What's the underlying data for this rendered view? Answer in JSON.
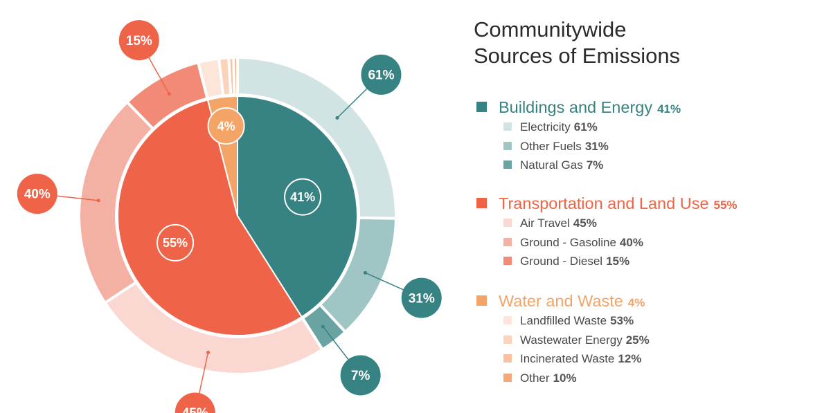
{
  "chart_data": {
    "type": "pie",
    "variant": "nested-donut",
    "title": "Communitywide\nSources of Emissions",
    "title_lines": [
      "Communitywide",
      "Sources of Emissions"
    ],
    "categories": [
      {
        "name": "Buildings and Energy",
        "value": 41,
        "label": "41%",
        "color": "#378283",
        "subcategories": [
          {
            "name": "Electricity",
            "value": 61,
            "label": "61%",
            "color": "#d2e3e3",
            "callout": true
          },
          {
            "name": "Other Fuels",
            "value": 31,
            "label": "31%",
            "color": "#9fc5c4",
            "callout": true
          },
          {
            "name": "Natural Gas",
            "value": 7,
            "label": "7%",
            "color": "#6aa4a2",
            "callout": true
          }
        ]
      },
      {
        "name": "Transportation and Land Use",
        "value": 55,
        "label": "55%",
        "color": "#ef6448",
        "subcategories": [
          {
            "name": "Air Travel",
            "value": 45,
            "label": "45%",
            "color": "#fad8d1",
            "callout": true
          },
          {
            "name": "Ground - Gasoline",
            "value": 40,
            "label": "40%",
            "color": "#f5b0a4",
            "callout": true
          },
          {
            "name": "Ground - Diesel",
            "value": 15,
            "label": "15%",
            "color": "#f18a77",
            "callout": true
          }
        ]
      },
      {
        "name": "Water and Waste",
        "value": 4,
        "label": "4%",
        "color": "#f5a468",
        "subcategories": [
          {
            "name": "Landfilled Waste",
            "value": 53,
            "label": "53%",
            "color": "#fde5d9",
            "callout": false
          },
          {
            "name": "Wastewater Energy",
            "value": 25,
            "label": "25%",
            "color": "#fbd3bb",
            "callout": false
          },
          {
            "name": "Incinerated Waste",
            "value": 12,
            "label": "12%",
            "color": "#f9c19f",
            "callout": false
          },
          {
            "name": "Other",
            "value": 10,
            "label": "10%",
            "color": "#f5a87a",
            "callout": false
          }
        ]
      }
    ],
    "legend_placement": "right"
  }
}
